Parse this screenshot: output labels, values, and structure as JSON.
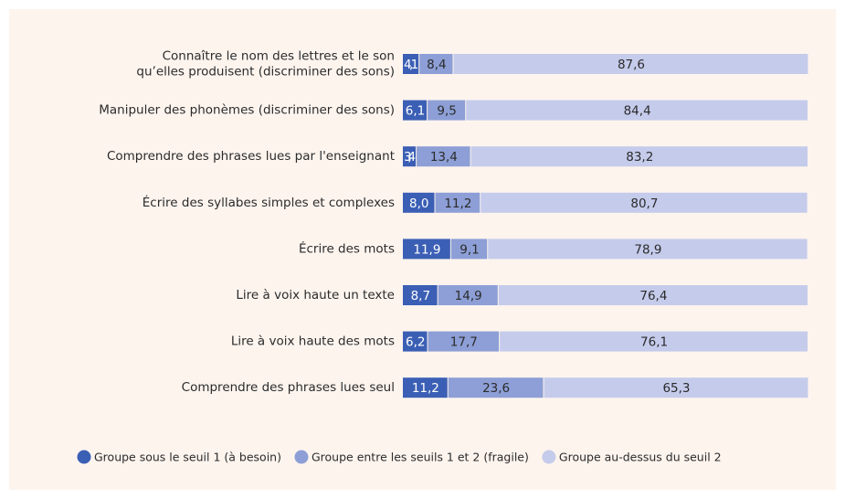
{
  "chart_data": {
    "type": "stacked-bar-horizontal",
    "categories": [
      [
        "Connaître le nom des lettres et le son",
        "qu’elles produisent (discriminer des sons)"
      ],
      [
        "Manipuler des phonèmes (discriminer des sons)"
      ],
      [
        "Comprendre des phrases lues par l'enseignant"
      ],
      [
        "Écrire des syllabes simples et complexes"
      ],
      [
        "Écrire des mots"
      ],
      [
        "Lire à voix haute un texte"
      ],
      [
        "Lire à voix haute des mots"
      ],
      [
        "Comprendre des phrases lues seul"
      ]
    ],
    "xlim": [
      0,
      100
    ],
    "series": [
      {
        "name": "Groupe sous le seuil 1 (à besoin)",
        "color": "#3b5fb5",
        "text_color": "#ffffff",
        "values": [
          4.1,
          6.1,
          3.4,
          8.0,
          11.9,
          8.7,
          6.2,
          11.2
        ],
        "value_labels": [
          "4,1",
          "6,1",
          "3,4",
          "8,0",
          "11,9",
          "8,7",
          "6,2",
          "11,2"
        ]
      },
      {
        "name": "Groupe entre les seuils 1 et 2 (fragile)",
        "color": "#8d9fd6",
        "text_color": "#2b2b2b",
        "values": [
          8.4,
          9.5,
          13.4,
          11.2,
          9.1,
          14.9,
          17.7,
          23.6
        ],
        "value_labels": [
          "8,4",
          "9,5",
          "13,4",
          "11,2",
          "9,1",
          "14,9",
          "17,7",
          "23,6"
        ]
      },
      {
        "name": "Groupe au-dessus du seuil 2",
        "color": "#c5cbeb",
        "text_color": "#2b2b2b",
        "values": [
          87.6,
          84.4,
          83.2,
          80.7,
          78.9,
          76.4,
          76.1,
          65.3
        ],
        "value_labels": [
          "87,6",
          "84,4",
          "83,2",
          "80,7",
          "78,9",
          "76,4",
          "76,1",
          "65,3"
        ]
      }
    ],
    "legend": "bottom"
  }
}
